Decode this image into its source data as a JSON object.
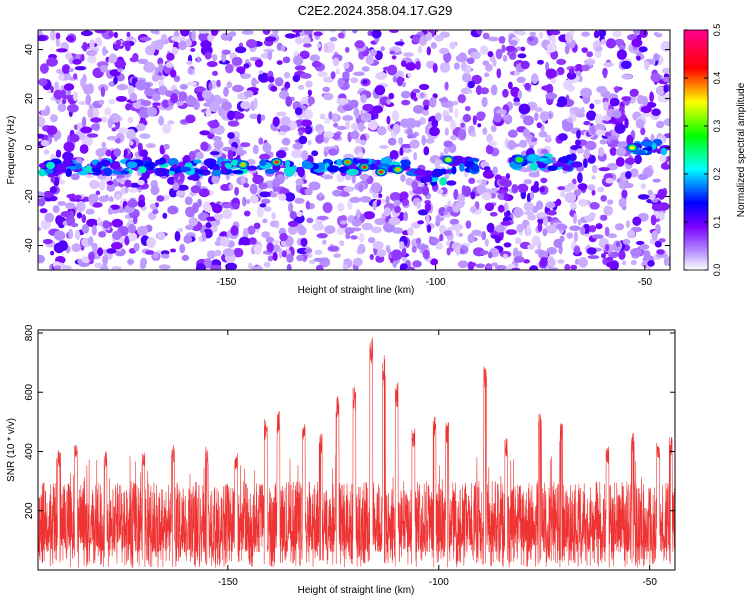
{
  "title": "C2E2.2024.358.04.17.G29",
  "chart_data": [
    {
      "type": "heatmap",
      "xlabel": "Height of straight line (km)",
      "ylabel": "Frequency (Hz)",
      "xlim": [
        -195,
        -44
      ],
      "ylim": [
        -50,
        48
      ],
      "xticks": [
        -150,
        -100,
        -50
      ],
      "yticks": [
        -40,
        -20,
        0,
        20,
        40
      ],
      "colorbar": {
        "label": "Normalized spectral amplitude",
        "range": [
          0.0,
          0.5
        ],
        "ticks": [
          0.0,
          0.1,
          0.2,
          0.3,
          0.4,
          0.5
        ],
        "tick_labels": [
          "0.0",
          "0.1",
          "0.2",
          "0.3",
          "0.4",
          "0.5"
        ],
        "colors": [
          "#ffffff",
          "#7a00ff",
          "#0000ff",
          "#00ffff",
          "#00ff00",
          "#ffff00",
          "#ff0000",
          "#ff0090"
        ]
      },
      "ridge": {
        "description_frequency_hz": -8,
        "segments": [
          {
            "x_start": -195,
            "x_end": -107,
            "frequency": -8
          },
          {
            "x_start": -107,
            "x_end": -96,
            "frequency": -12
          },
          {
            "x_start": -96,
            "x_end": -90,
            "frequency": -7
          },
          {
            "x_start": -82,
            "x_end": -66,
            "frequency": -6
          },
          {
            "x_start": -54,
            "x_end": -45,
            "frequency": 0
          }
        ],
        "peaks": [
          {
            "x": -146,
            "frequency": -7,
            "amplitude": 0.4
          },
          {
            "x": -138,
            "frequency": -6,
            "amplitude": 0.45
          },
          {
            "x": -121,
            "frequency": -6,
            "amplitude": 0.42
          },
          {
            "x": -117,
            "frequency": -8,
            "amplitude": 0.45
          },
          {
            "x": -113,
            "frequency": -10,
            "amplitude": 0.45
          },
          {
            "x": -109,
            "frequency": -9,
            "amplitude": 0.4
          },
          {
            "x": -97,
            "frequency": -5,
            "amplitude": 0.38
          },
          {
            "x": -80,
            "frequency": -5,
            "amplitude": 0.35
          },
          {
            "x": -53,
            "frequency": 0,
            "amplitude": 0.38
          }
        ]
      }
    },
    {
      "type": "line",
      "xlabel": "Height of straight line (km)",
      "ylabel": "SNR (10 * v/v)",
      "xlim": [
        -195,
        -44
      ],
      "ylim": [
        0,
        810
      ],
      "xticks": [
        -150,
        -100,
        -50
      ],
      "yticks": [
        200,
        400,
        600,
        800
      ],
      "color": "#ef3333",
      "baseline_band": [
        60,
        300
      ],
      "spikes": [
        {
          "x": -190,
          "y": 410
        },
        {
          "x": -186,
          "y": 440
        },
        {
          "x": -179,
          "y": 400
        },
        {
          "x": -170,
          "y": 410
        },
        {
          "x": -163,
          "y": 425
        },
        {
          "x": -155,
          "y": 420
        },
        {
          "x": -148,
          "y": 395
        },
        {
          "x": -141,
          "y": 510
        },
        {
          "x": -138,
          "y": 540
        },
        {
          "x": -132,
          "y": 500
        },
        {
          "x": -128,
          "y": 460
        },
        {
          "x": -124,
          "y": 590
        },
        {
          "x": -120,
          "y": 620
        },
        {
          "x": -116,
          "y": 810
        },
        {
          "x": -113,
          "y": 730
        },
        {
          "x": -110,
          "y": 640
        },
        {
          "x": -106,
          "y": 480
        },
        {
          "x": -101,
          "y": 520
        },
        {
          "x": -98,
          "y": 500
        },
        {
          "x": -89,
          "y": 700
        },
        {
          "x": -84,
          "y": 445
        },
        {
          "x": -76,
          "y": 530
        },
        {
          "x": -71,
          "y": 505
        },
        {
          "x": -60,
          "y": 420
        },
        {
          "x": -54,
          "y": 465
        },
        {
          "x": -48,
          "y": 430
        },
        {
          "x": -45,
          "y": 450
        }
      ]
    }
  ]
}
